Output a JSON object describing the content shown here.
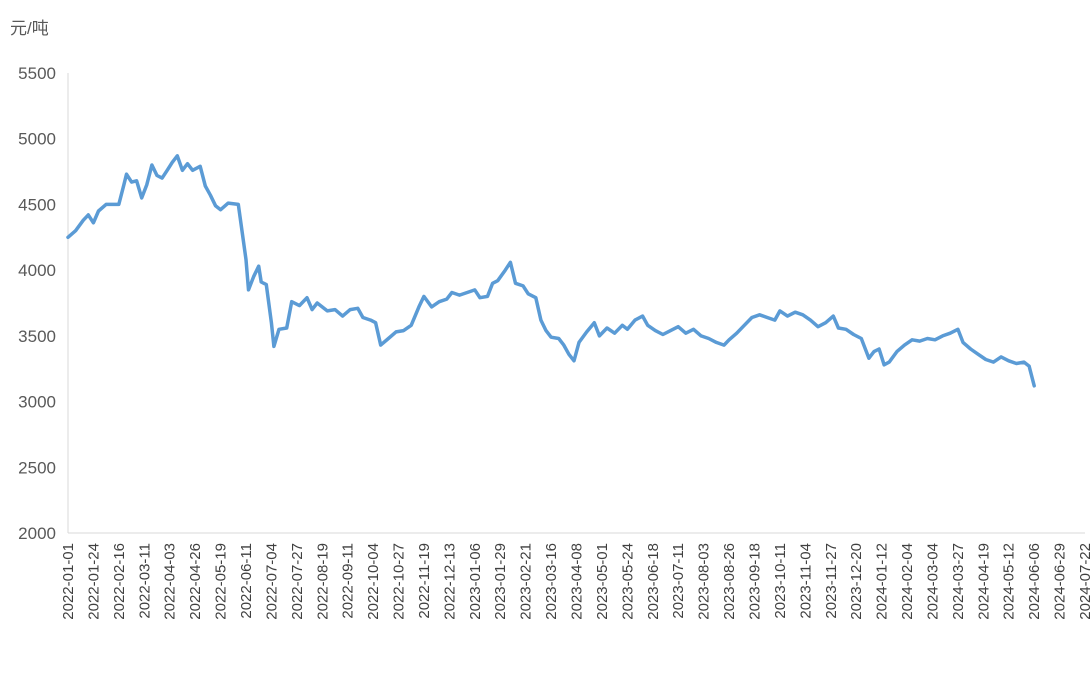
{
  "chart_data": {
    "type": "line",
    "unit_label": "元/吨",
    "ylim": [
      2000,
      5500
    ],
    "yticks": [
      2000,
      2500,
      3000,
      3500,
      4000,
      4500,
      5000,
      5500
    ],
    "grid": false,
    "legend": "none",
    "x_labels": [
      "2022-01-01",
      "2022-01-24",
      "2022-02-16",
      "2022-03-11",
      "2022-04-03",
      "2022-04-26",
      "2022-05-19",
      "2022-06-11",
      "2022-07-04",
      "2022-07-27",
      "2022-08-19",
      "2022-09-11",
      "2022-10-04",
      "2022-10-27",
      "2022-11-19",
      "2022-12-13",
      "2023-01-06",
      "2023-01-29",
      "2023-02-21",
      "2023-03-16",
      "2023-04-08",
      "2023-05-01",
      "2023-05-24",
      "2023-06-18",
      "2023-07-11",
      "2023-08-03",
      "2023-08-26",
      "2023-09-18",
      "2023-10-11",
      "2023-11-04",
      "2023-11-27",
      "2023-12-20",
      "2024-01-12",
      "2024-02-04",
      "2024-03-04",
      "2024-03-27",
      "2024-04-19",
      "2024-05-12",
      "2024-06-06",
      "2024-06-29",
      "2024-07-22"
    ],
    "series": [
      {
        "color": "#5b9bd5",
        "points": [
          [
            0,
            4250
          ],
          [
            0.3,
            4300
          ],
          [
            0.6,
            4380
          ],
          [
            0.8,
            4420
          ],
          [
            1.0,
            4360
          ],
          [
            1.2,
            4450
          ],
          [
            1.5,
            4500
          ],
          [
            2.0,
            4500
          ],
          [
            2.2,
            4650
          ],
          [
            2.3,
            4730
          ],
          [
            2.5,
            4670
          ],
          [
            2.7,
            4680
          ],
          [
            2.9,
            4550
          ],
          [
            3.1,
            4650
          ],
          [
            3.3,
            4800
          ],
          [
            3.5,
            4720
          ],
          [
            3.7,
            4700
          ],
          [
            3.9,
            4760
          ],
          [
            4.1,
            4820
          ],
          [
            4.3,
            4870
          ],
          [
            4.5,
            4760
          ],
          [
            4.7,
            4810
          ],
          [
            4.9,
            4760
          ],
          [
            5.2,
            4790
          ],
          [
            5.4,
            4640
          ],
          [
            5.6,
            4570
          ],
          [
            5.8,
            4490
          ],
          [
            6.0,
            4460
          ],
          [
            6.3,
            4510
          ],
          [
            6.7,
            4500
          ],
          [
            7.0,
            4080
          ],
          [
            7.1,
            3850
          ],
          [
            7.3,
            3950
          ],
          [
            7.5,
            4030
          ],
          [
            7.6,
            3910
          ],
          [
            7.8,
            3890
          ],
          [
            8.0,
            3600
          ],
          [
            8.1,
            3420
          ],
          [
            8.3,
            3550
          ],
          [
            8.6,
            3560
          ],
          [
            8.8,
            3760
          ],
          [
            9.1,
            3730
          ],
          [
            9.4,
            3790
          ],
          [
            9.6,
            3700
          ],
          [
            9.8,
            3750
          ],
          [
            10.2,
            3690
          ],
          [
            10.5,
            3700
          ],
          [
            10.8,
            3650
          ],
          [
            11.1,
            3700
          ],
          [
            11.4,
            3710
          ],
          [
            11.6,
            3640
          ],
          [
            11.9,
            3620
          ],
          [
            12.1,
            3600
          ],
          [
            12.3,
            3430
          ],
          [
            12.6,
            3480
          ],
          [
            12.9,
            3530
          ],
          [
            13.2,
            3540
          ],
          [
            13.5,
            3580
          ],
          [
            13.8,
            3720
          ],
          [
            14.0,
            3800
          ],
          [
            14.3,
            3720
          ],
          [
            14.6,
            3760
          ],
          [
            14.9,
            3780
          ],
          [
            15.1,
            3830
          ],
          [
            15.4,
            3810
          ],
          [
            15.7,
            3830
          ],
          [
            16.0,
            3850
          ],
          [
            16.2,
            3790
          ],
          [
            16.5,
            3800
          ],
          [
            16.7,
            3900
          ],
          [
            16.9,
            3920
          ],
          [
            17.2,
            4000
          ],
          [
            17.4,
            4060
          ],
          [
            17.6,
            3900
          ],
          [
            17.9,
            3880
          ],
          [
            18.1,
            3820
          ],
          [
            18.4,
            3790
          ],
          [
            18.6,
            3620
          ],
          [
            18.8,
            3540
          ],
          [
            19.0,
            3490
          ],
          [
            19.3,
            3480
          ],
          [
            19.5,
            3430
          ],
          [
            19.7,
            3360
          ],
          [
            19.9,
            3310
          ],
          [
            20.1,
            3450
          ],
          [
            20.4,
            3530
          ],
          [
            20.7,
            3600
          ],
          [
            20.9,
            3500
          ],
          [
            21.2,
            3560
          ],
          [
            21.5,
            3520
          ],
          [
            21.8,
            3580
          ],
          [
            22.0,
            3550
          ],
          [
            22.3,
            3620
          ],
          [
            22.6,
            3650
          ],
          [
            22.8,
            3580
          ],
          [
            23.1,
            3540
          ],
          [
            23.4,
            3510
          ],
          [
            23.7,
            3540
          ],
          [
            24.0,
            3570
          ],
          [
            24.3,
            3520
          ],
          [
            24.6,
            3550
          ],
          [
            24.9,
            3500
          ],
          [
            25.2,
            3480
          ],
          [
            25.5,
            3450
          ],
          [
            25.8,
            3430
          ],
          [
            26.0,
            3470
          ],
          [
            26.3,
            3520
          ],
          [
            26.6,
            3580
          ],
          [
            26.9,
            3640
          ],
          [
            27.2,
            3660
          ],
          [
            27.5,
            3640
          ],
          [
            27.8,
            3620
          ],
          [
            28.0,
            3690
          ],
          [
            28.3,
            3650
          ],
          [
            28.6,
            3680
          ],
          [
            28.9,
            3660
          ],
          [
            29.2,
            3620
          ],
          [
            29.5,
            3570
          ],
          [
            29.8,
            3600
          ],
          [
            30.1,
            3650
          ],
          [
            30.3,
            3560
          ],
          [
            30.6,
            3550
          ],
          [
            30.9,
            3510
          ],
          [
            31.2,
            3480
          ],
          [
            31.5,
            3330
          ],
          [
            31.7,
            3380
          ],
          [
            31.9,
            3400
          ],
          [
            32.1,
            3280
          ],
          [
            32.3,
            3300
          ],
          [
            32.6,
            3380
          ],
          [
            32.9,
            3430
          ],
          [
            33.2,
            3470
          ],
          [
            33.5,
            3460
          ],
          [
            33.8,
            3480
          ],
          [
            34.1,
            3470
          ],
          [
            34.4,
            3500
          ],
          [
            34.7,
            3520
          ],
          [
            35.0,
            3550
          ],
          [
            35.2,
            3450
          ],
          [
            35.5,
            3400
          ],
          [
            35.8,
            3360
          ],
          [
            36.1,
            3320
          ],
          [
            36.4,
            3300
          ],
          [
            36.7,
            3340
          ],
          [
            37.0,
            3310
          ],
          [
            37.3,
            3290
          ],
          [
            37.6,
            3300
          ],
          [
            37.8,
            3270
          ],
          [
            38.0,
            3120
          ]
        ]
      }
    ]
  }
}
